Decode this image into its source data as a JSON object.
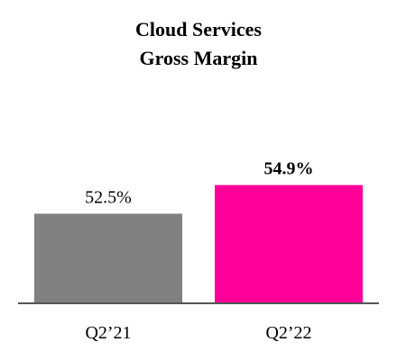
{
  "chart_data": {
    "type": "bar",
    "title_lines": [
      "Cloud Services",
      "Gross Margin"
    ],
    "categories": [
      "Q2’21",
      "Q2’22"
    ],
    "values": [
      52.5,
      54.9
    ],
    "value_labels": [
      "52.5%",
      "54.9%"
    ],
    "bar_colors": [
      "#808080",
      "#FF0099"
    ],
    "label_bold": [
      false,
      true
    ],
    "axis_color": "#555555",
    "ylim": [
      45,
      56
    ],
    "grid": false,
    "legend": "none"
  }
}
